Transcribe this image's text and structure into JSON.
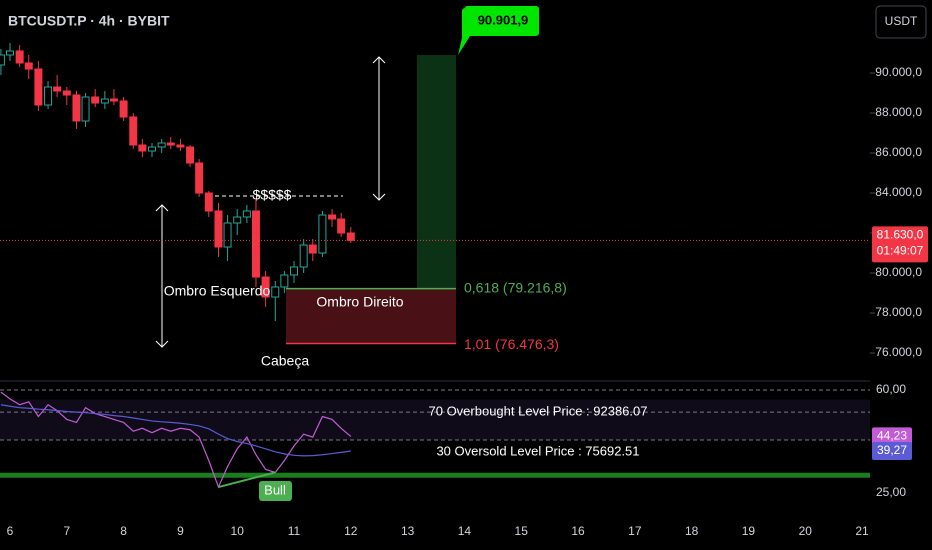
{
  "header": {
    "symbol": "BTCUSDT.P · 4h · BYBIT",
    "currency_button": "USDT"
  },
  "chart_data": [
    {
      "type": "candlestick",
      "x": [
        5.84,
        6.0,
        6.17,
        6.33,
        6.5,
        6.67,
        6.83,
        7.0,
        7.17,
        7.33,
        7.5,
        7.67,
        7.83,
        8.0,
        8.17,
        8.33,
        8.5,
        8.67,
        8.83,
        9.0,
        9.17,
        9.33,
        9.5,
        9.67,
        9.83,
        10.0,
        10.17,
        10.33,
        10.5,
        10.67,
        10.83,
        11.0,
        11.17,
        11.33,
        11.5,
        11.67,
        11.83,
        12.0
      ],
      "open": [
        90400,
        90900,
        91100,
        90500,
        90200,
        88400,
        89300,
        89100,
        88900,
        87600,
        88800,
        88500,
        88700,
        88600,
        87800,
        86400,
        86100,
        86300,
        86500,
        86400,
        86300,
        85500,
        84000,
        83100,
        81300,
        82500,
        82800,
        83100,
        79800,
        78800,
        79300,
        79900,
        80300,
        81400,
        81000,
        82900,
        82700,
        82000
      ],
      "high": [
        91200,
        91500,
        91400,
        90900,
        90600,
        89600,
        89900,
        89300,
        89100,
        89000,
        89200,
        89100,
        89200,
        88800,
        88000,
        86700,
        86500,
        86700,
        86800,
        86700,
        86400,
        85700,
        84100,
        83500,
        82900,
        83200,
        83400,
        83700,
        80100,
        79600,
        80100,
        80600,
        81700,
        81700,
        83100,
        83200,
        83000,
        82300
      ],
      "low": [
        89900,
        90600,
        90300,
        89700,
        88100,
        88200,
        88800,
        88400,
        87200,
        87300,
        88300,
        88200,
        88400,
        87600,
        86200,
        85800,
        85800,
        86000,
        86200,
        86100,
        85300,
        83800,
        82800,
        80800,
        80600,
        81900,
        82500,
        79300,
        78300,
        77600,
        79000,
        79500,
        80000,
        80600,
        80800,
        82300,
        81800,
        81500
      ],
      "close": [
        90900,
        91100,
        90500,
        90200,
        88400,
        89300,
        89100,
        88900,
        87600,
        88800,
        88500,
        88700,
        88600,
        87800,
        86400,
        86100,
        86300,
        86500,
        86400,
        86300,
        85500,
        84000,
        83100,
        81300,
        82500,
        82800,
        83100,
        79800,
        78800,
        79300,
        79900,
        80300,
        81400,
        81000,
        82900,
        82700,
        82000,
        81630
      ],
      "up_color": "#26a69a",
      "down_color": "#f23645",
      "xlim": [
        5.824,
        21.14
      ],
      "ylim": [
        74650,
        93650
      ],
      "yticks": [
        {
          "value": 76000,
          "label": "76.000,0"
        },
        {
          "value": 78000,
          "label": "78.000,0"
        },
        {
          "value": 80000,
          "label": "80.000,0"
        },
        {
          "value": 82000,
          "label": "82.000,0"
        },
        {
          "value": 84000,
          "label": "84.000,0"
        },
        {
          "value": 86000,
          "label": "86.000,0"
        },
        {
          "value": 88000,
          "label": "88.000,0"
        },
        {
          "value": 90000,
          "label": "90.000,0"
        }
      ],
      "current_price": {
        "value": 81630,
        "label": "81.630,0"
      },
      "countdown": "01:49:07",
      "liquidity": {
        "value": 83850,
        "label": "$$$$$"
      },
      "annotations": [
        "Ombro Esquerdo",
        "Ombro Direito",
        "Cabeça"
      ],
      "position": {
        "target": {
          "value": 90901.9,
          "label": "90.901,9"
        },
        "entry": {
          "value": 79216.8,
          "label": "0,618 (79.216,8)"
        },
        "stop": {
          "value": 76476.3,
          "label": "1,01 (76.476,3)"
        }
      }
    },
    {
      "type": "line",
      "x": [
        5.84,
        6.0,
        6.17,
        6.33,
        6.5,
        6.67,
        6.83,
        7.0,
        7.17,
        7.33,
        7.5,
        7.67,
        7.83,
        8.0,
        8.17,
        8.33,
        8.5,
        8.67,
        8.83,
        9.0,
        9.17,
        9.33,
        9.5,
        9.67,
        9.83,
        10.0,
        10.17,
        10.33,
        10.5,
        10.67,
        10.83,
        11.0,
        11.17,
        11.33,
        11.5,
        11.67,
        11.83,
        12.0
      ],
      "series": [
        {
          "color": "#c45bd6",
          "values": [
            59.3,
            57,
            55,
            56,
            51,
            55,
            53,
            50,
            49,
            54,
            52,
            51,
            50,
            49,
            46,
            47,
            45.5,
            47,
            46,
            47,
            46.5,
            44,
            36,
            27,
            34,
            40,
            44,
            38,
            33,
            32,
            36,
            41,
            45,
            44,
            51,
            50,
            47,
            44.23
          ],
          "tag": {
            "value": 44.23,
            "label": "44,23"
          }
        },
        {
          "color": "#5b5bd6",
          "values": [
            55,
            54.5,
            54,
            53.8,
            53.5,
            53.3,
            53,
            52.7,
            52.5,
            52.3,
            52,
            51.7,
            51.3,
            51,
            50.5,
            50,
            49.5,
            49.2,
            49,
            48.7,
            48.3,
            47.8,
            46.8,
            45,
            43.5,
            42.5,
            41.8,
            41,
            40,
            39,
            38.3,
            37.8,
            37.6,
            37.7,
            38,
            38.4,
            38.8,
            39.27
          ],
          "tag": {
            "value": 39.27,
            "label": "39,27"
          }
        }
      ],
      "levels": [
        {
          "value": 52.5,
          "label": "70 Overbought Level Price : 92386.07"
        },
        {
          "value": 43,
          "label": "30 Oversold Level Price : 75692.51"
        }
      ],
      "support": 31,
      "divergence": "Bull",
      "xlim": [
        5.824,
        21.14
      ],
      "ylim": [
        19.2,
        62.4
      ],
      "yticks": [
        {
          "value": 25,
          "label": "25,00"
        },
        {
          "value": 60,
          "label": "60,00"
        }
      ],
      "xticks": [
        6,
        7,
        8,
        9,
        10,
        11,
        12,
        13,
        14,
        15,
        16,
        17,
        18,
        19,
        20,
        21
      ]
    }
  ]
}
